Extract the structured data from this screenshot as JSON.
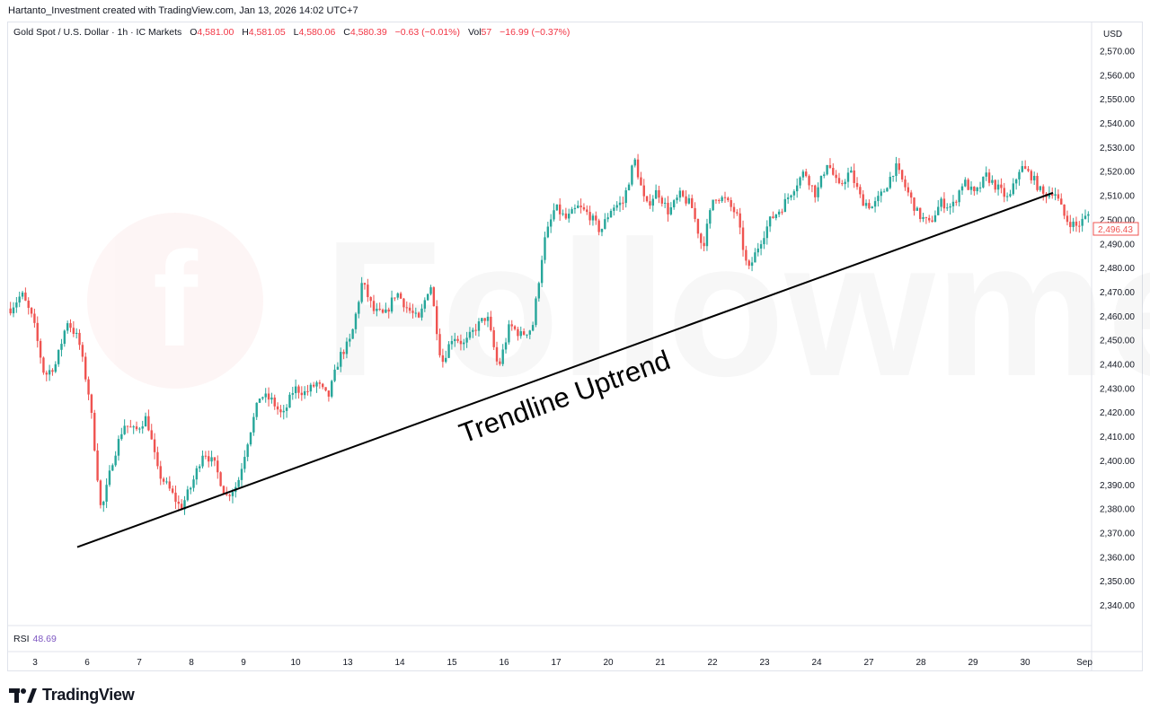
{
  "header": {
    "attribution": "Hartanto_Investment created with TradingView.com, Jan 13, 2026 14:02 UTC+7"
  },
  "legend": {
    "symbol": "Gold Spot / U.S. Dollar · 1h · IC Markets",
    "o_label": "O",
    "o_value": "4,581.00",
    "h_label": "H",
    "h_value": "4,581.05",
    "l_label": "L",
    "l_value": "4,580.06",
    "c_label": "C",
    "c_value": "4,580.39",
    "change": "−0.63 (−0.01%)",
    "vol_label": "Vol",
    "vol_value": "57",
    "vol_change": "−16.99 (−0.37%)"
  },
  "price_axis": {
    "currency": "USD",
    "last_price": "2,496.43"
  },
  "rsi": {
    "label": "RSI",
    "value": "48.69"
  },
  "watermark": "Followme",
  "annotation": {
    "text": "Trendline Uptrend"
  },
  "footer": {
    "brand": "TradingView"
  },
  "colors": {
    "up": "#26a69a",
    "down": "#ef5350",
    "line": "#000000",
    "rsi": "#7e57c2"
  },
  "chart_data": {
    "type": "candlestick",
    "ylim": [
      2330,
      2575
    ],
    "y_ticks": [
      "2,340.00",
      "2,350.00",
      "2,360.00",
      "2,370.00",
      "2,380.00",
      "2,390.00",
      "2,400.00",
      "2,410.00",
      "2,420.00",
      "2,430.00",
      "2,440.00",
      "2,450.00",
      "2,460.00",
      "2,470.00",
      "2,480.00",
      "2,490.00",
      "2,500.00",
      "2,510.00",
      "2,520.00",
      "2,530.00",
      "2,540.00",
      "2,550.00",
      "2,560.00",
      "2,570.00"
    ],
    "x_labels": [
      "3",
      "6",
      "7",
      "8",
      "9",
      "10",
      "13",
      "14",
      "15",
      "16",
      "17",
      "20",
      "21",
      "22",
      "23",
      "24",
      "27",
      "28",
      "29",
      "30",
      "Sep"
    ],
    "close_path": [
      2463,
      2469,
      2458,
      2435,
      2440,
      2458,
      2450,
      2425,
      2378,
      2400,
      2415,
      2412,
      2418,
      2395,
      2388,
      2380,
      2390,
      2404,
      2398,
      2385,
      2390,
      2410,
      2427,
      2425,
      2418,
      2430,
      2428,
      2432,
      2426,
      2443,
      2450,
      2474,
      2462,
      2460,
      2470,
      2463,
      2458,
      2474,
      2440,
      2452,
      2448,
      2455,
      2460,
      2438,
      2456,
      2452,
      2455,
      2490,
      2505,
      2500,
      2505,
      2502,
      2495,
      2505,
      2507,
      2525,
      2505,
      2512,
      2503,
      2510,
      2506,
      2488,
      2510,
      2508,
      2502,
      2478,
      2490,
      2500,
      2505,
      2513,
      2520,
      2510,
      2524,
      2513,
      2520,
      2508,
      2505,
      2512,
      2522,
      2512,
      2502,
      2498,
      2507,
      2505,
      2516,
      2510,
      2518,
      2513,
      2508,
      2522,
      2518,
      2510,
      2512,
      2500,
      2497,
      2502
    ],
    "trendline": {
      "start": {
        "x_label": "6",
        "price": 2364
      },
      "end": {
        "x_label": "30",
        "price": 2511
      }
    }
  }
}
